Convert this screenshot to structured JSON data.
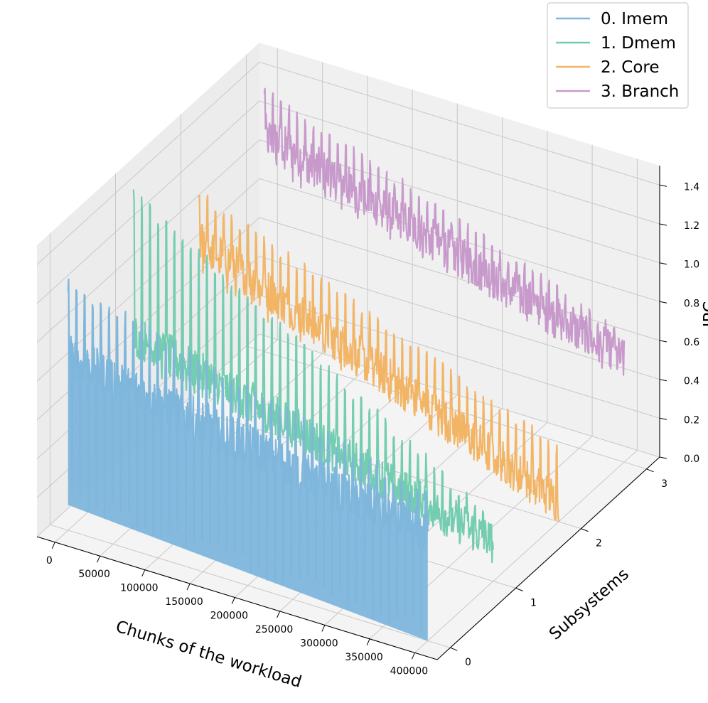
{
  "chart_data": {
    "type": "line",
    "projection": "3d",
    "title": "",
    "xlabel": "Chunks of the workload",
    "ylabel": "Subsystems",
    "zlabel": "IPC",
    "xlim": [
      -20000,
      425000
    ],
    "ylim": [
      -0.2,
      3.2
    ],
    "zlim": [
      0,
      1.5
    ],
    "x_ticks": [
      0,
      50000,
      100000,
      150000,
      200000,
      250000,
      300000,
      350000,
      400000
    ],
    "x_tick_labels": [
      "0",
      "50000",
      "100000",
      "150000",
      "200000",
      "250000",
      "300000",
      "350000",
      "400000"
    ],
    "y_ticks": [
      0,
      1,
      2,
      3
    ],
    "y_tick_labels": [
      "0",
      "1",
      "2",
      "3"
    ],
    "z_ticks": [
      0.0,
      0.2,
      0.4,
      0.6,
      0.8,
      1.0,
      1.2,
      1.4
    ],
    "z_tick_labels": [
      "0.0",
      "0.2",
      "0.4",
      "0.6",
      "0.8",
      "1.0",
      "1.2",
      "1.4"
    ],
    "grid": true,
    "legend_position": "top-right",
    "x_range": [
      0,
      400000
    ],
    "series": [
      {
        "name": "0. Imem",
        "subsystem": 0,
        "color": "#7EB6DC",
        "ipc_min_start": 0.13,
        "ipc_min_end": 0.0,
        "ipc_peak_start": 1.3,
        "ipc_peak_end": 0.78,
        "ipc_base_start": 0.9,
        "ipc_base_end": 0.55
      },
      {
        "name": "1. Dmem",
        "subsystem": 1,
        "color": "#74CDB0",
        "ipc_min_start": 0.55,
        "ipc_min_end": 0.12,
        "ipc_peak_start": 1.45,
        "ipc_peak_end": 0.35,
        "ipc_base_start": 0.7,
        "ipc_base_end": 0.2
      },
      {
        "name": "2. Core",
        "subsystem": 2,
        "color": "#F2B566",
        "ipc_min_start": 0.7,
        "ipc_min_end": 0.0,
        "ipc_peak_start": 1.15,
        "ipc_peak_end": 0.4,
        "ipc_base_start": 0.88,
        "ipc_base_end": 0.1
      },
      {
        "name": "3. Branch",
        "subsystem": 3,
        "color": "#C79ACB",
        "ipc_min_start": 0.95,
        "ipc_min_end": 0.45,
        "ipc_peak_start": 1.38,
        "ipc_peak_end": 0.68,
        "ipc_base_start": 1.12,
        "ipc_base_end": 0.52
      }
    ]
  }
}
